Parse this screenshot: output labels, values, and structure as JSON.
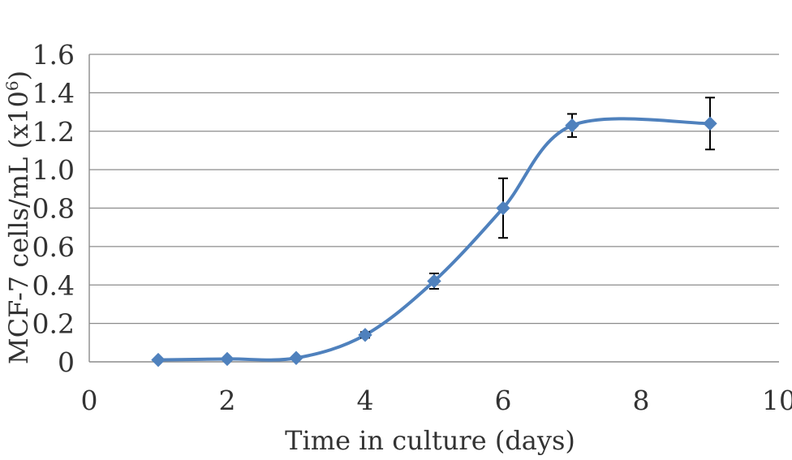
{
  "chart_data": {
    "type": "scatter",
    "title": "",
    "xlabel": "Time in culture (days)",
    "ylabel": "MCF-7 cells/mL (x10",
    "ylabel_sup": "6",
    "ylabel_close": ")",
    "xlim": [
      0,
      10
    ],
    "ylim": [
      0,
      1.6
    ],
    "x_ticks": [
      0,
      2,
      4,
      6,
      8,
      10
    ],
    "x_tick_labels": [
      "0",
      "2",
      "4",
      "6",
      "8",
      "10"
    ],
    "y_ticks": [
      0,
      0.2,
      0.4,
      0.6,
      0.8,
      1.0,
      1.2,
      1.4,
      1.6
    ],
    "y_tick_labels": [
      "0",
      "0.2",
      "0.4",
      "0.6",
      "0.8",
      "1.0",
      "1.2",
      "1.4",
      "1.6"
    ],
    "grid": "horizontal",
    "smooth": true,
    "marker": "diamond",
    "color": "#4f81bd",
    "series": [
      {
        "x": [
          1,
          2,
          3,
          4,
          5,
          6,
          7,
          9
        ],
        "y": [
          0.01,
          0.015,
          0.02,
          0.14,
          0.42,
          0.8,
          1.23,
          1.24
        ],
        "error": [
          0,
          0,
          0,
          0.015,
          0.04,
          0.155,
          0.06,
          0.135
        ]
      }
    ]
  }
}
